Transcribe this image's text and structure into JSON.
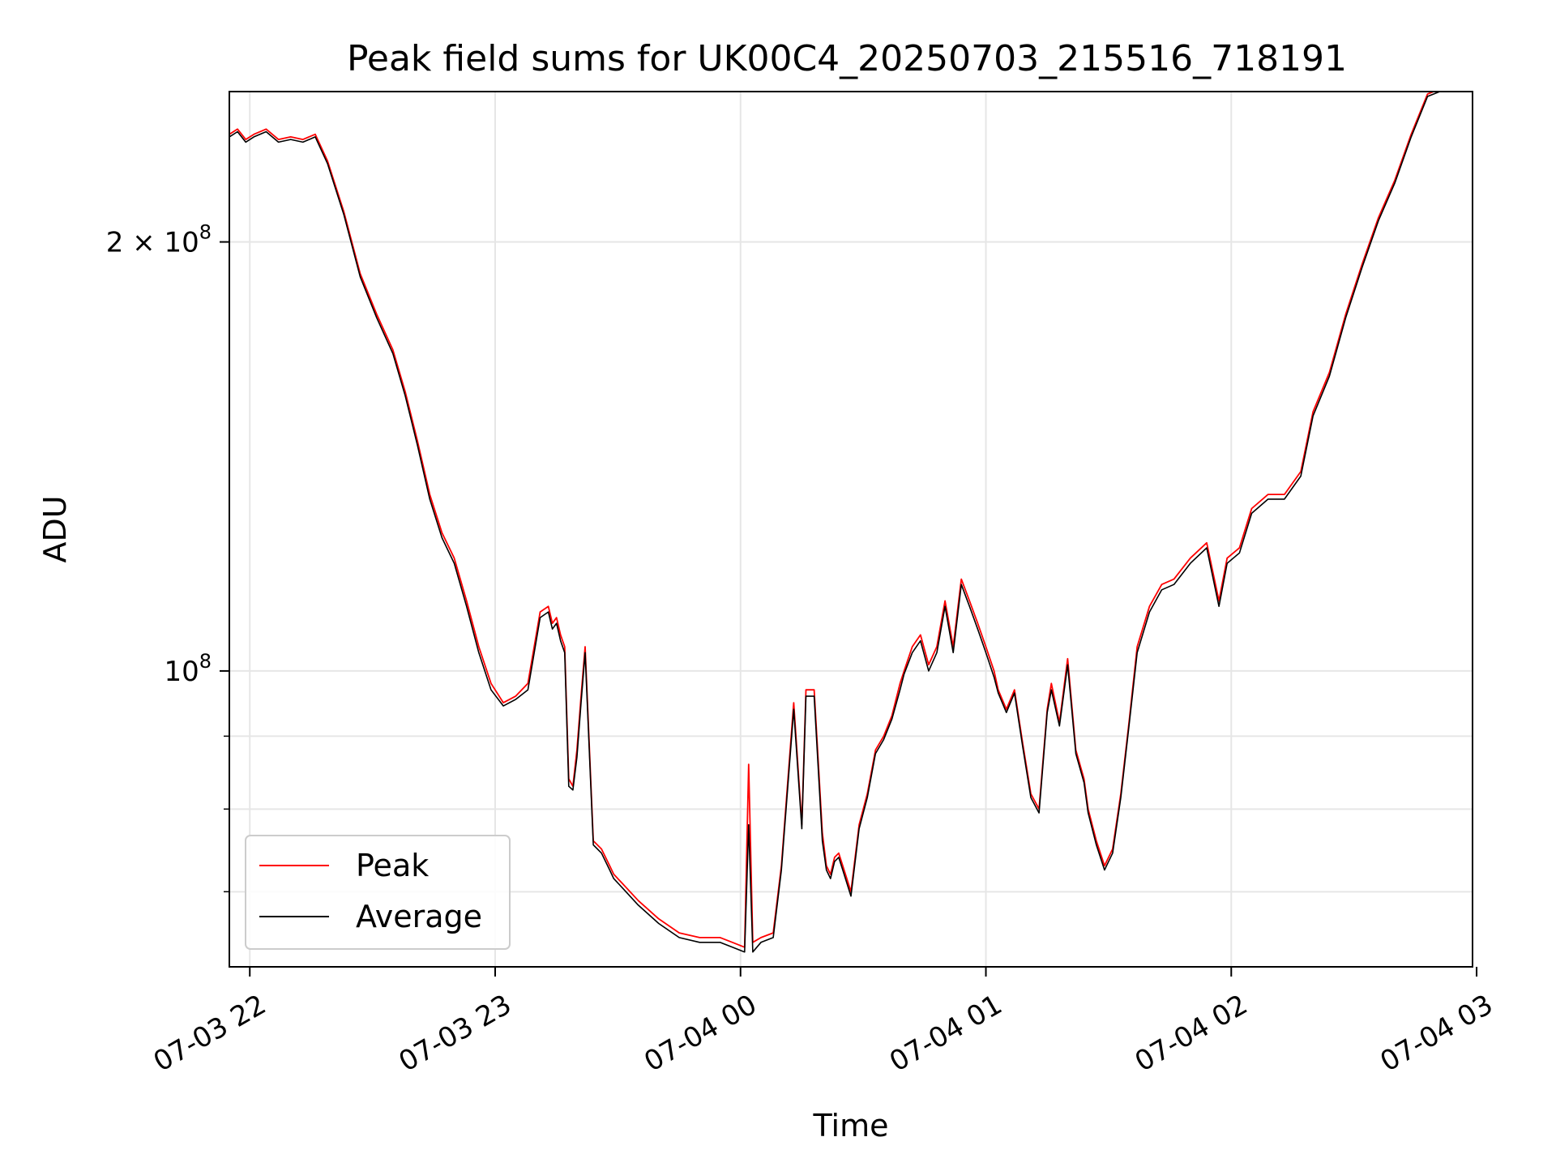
{
  "chart_data": {
    "type": "line",
    "title": "Peak field sums for UK00C4_20250703_215516_718191",
    "xlabel": "Time",
    "ylabel": "ADU",
    "yscale": "log",
    "grid": true,
    "legend_position": "lower-left",
    "xlim": [
      "2025-07-03 21:55",
      "2025-07-04 02:59"
    ],
    "ylim": [
      62000000,
      255000000
    ],
    "x_ticks": [
      {
        "value": "2025-07-03 22:00",
        "label": "07-03 22"
      },
      {
        "value": "2025-07-03 23:00",
        "label": "07-03 23"
      },
      {
        "value": "2025-07-04 00:00",
        "label": "07-04 00"
      },
      {
        "value": "2025-07-04 01:00",
        "label": "07-04 01"
      },
      {
        "value": "2025-07-04 02:00",
        "label": "07-04 02"
      },
      {
        "value": "2025-07-04 03:00",
        "label": "07-04 03"
      }
    ],
    "y_ticks_major": [
      {
        "value": 100000000,
        "label_base": "10",
        "label_exp": "8",
        "label_coef": ""
      },
      {
        "value": 200000000,
        "label_base": "10",
        "label_exp": "8",
        "label_coef": "2 × "
      }
    ],
    "y_ticks_minor": [
      70000000,
      80000000,
      90000000,
      300000000
    ],
    "series": [
      {
        "name": "Peak",
        "color": "#ff0000",
        "x": [
          "2025-07-03 21:55",
          "2025-07-03 21:57",
          "2025-07-03 21:59",
          "2025-07-03 22:01",
          "2025-07-03 22:04",
          "2025-07-03 22:07",
          "2025-07-03 22:10",
          "2025-07-03 22:13",
          "2025-07-03 22:16",
          "2025-07-03 22:19",
          "2025-07-03 22:23",
          "2025-07-03 22:27",
          "2025-07-03 22:31",
          "2025-07-03 22:35",
          "2025-07-03 22:38",
          "2025-07-03 22:41",
          "2025-07-03 22:44",
          "2025-07-03 22:47",
          "2025-07-03 22:50",
          "2025-07-03 22:53",
          "2025-07-03 22:56",
          "2025-07-03 22:59",
          "2025-07-03 23:02",
          "2025-07-03 23:05",
          "2025-07-03 23:08",
          "2025-07-03 23:11",
          "2025-07-03 23:13",
          "2025-07-03 23:14",
          "2025-07-03 23:15",
          "2025-07-03 23:16",
          "2025-07-03 23:17",
          "2025-07-03 23:18",
          "2025-07-03 23:19",
          "2025-07-03 23:20",
          "2025-07-03 23:21",
          "2025-07-03 23:22",
          "2025-07-03 23:24",
          "2025-07-03 23:26",
          "2025-07-03 23:28",
          "2025-07-03 23:29",
          "2025-07-03 23:31",
          "2025-07-03 23:35",
          "2025-07-03 23:40",
          "2025-07-03 23:45",
          "2025-07-03 23:50",
          "2025-07-03 23:55",
          "2025-07-03 23:58",
          "2025-07-04 00:01",
          "2025-07-04 00:02",
          "2025-07-04 00:03",
          "2025-07-04 00:05",
          "2025-07-04 00:08",
          "2025-07-04 00:10",
          "2025-07-04 00:13",
          "2025-07-04 00:15",
          "2025-07-04 00:16",
          "2025-07-04 00:18",
          "2025-07-04 00:20",
          "2025-07-04 00:21",
          "2025-07-04 00:22",
          "2025-07-04 00:23",
          "2025-07-04 00:24",
          "2025-07-04 00:25",
          "2025-07-04 00:27",
          "2025-07-04 00:29",
          "2025-07-04 00:31",
          "2025-07-04 00:33",
          "2025-07-04 00:35",
          "2025-07-04 00:37",
          "2025-07-04 00:39",
          "2025-07-04 00:40",
          "2025-07-04 00:42",
          "2025-07-04 00:44",
          "2025-07-04 00:46",
          "2025-07-04 00:48",
          "2025-07-04 00:50",
          "2025-07-04 00:52",
          "2025-07-04 00:54",
          "2025-07-04 00:56",
          "2025-07-04 00:58",
          "2025-07-04 01:00",
          "2025-07-04 01:02",
          "2025-07-04 01:03",
          "2025-07-04 01:05",
          "2025-07-04 01:07",
          "2025-07-04 01:09",
          "2025-07-04 01:11",
          "2025-07-04 01:13",
          "2025-07-04 01:15",
          "2025-07-04 01:16",
          "2025-07-04 01:18",
          "2025-07-04 01:20",
          "2025-07-04 01:22",
          "2025-07-04 01:24",
          "2025-07-04 01:25",
          "2025-07-04 01:27",
          "2025-07-04 01:29",
          "2025-07-04 01:31",
          "2025-07-04 01:33",
          "2025-07-04 01:35",
          "2025-07-04 01:37",
          "2025-07-04 01:40",
          "2025-07-04 01:43",
          "2025-07-04 01:46",
          "2025-07-04 01:50",
          "2025-07-04 01:54",
          "2025-07-04 01:57",
          "2025-07-04 01:59",
          "2025-07-04 02:02",
          "2025-07-04 02:05",
          "2025-07-04 02:09",
          "2025-07-04 02:13",
          "2025-07-04 02:17",
          "2025-07-04 02:20",
          "2025-07-04 02:24",
          "2025-07-04 02:28",
          "2025-07-04 02:32",
          "2025-07-04 02:36",
          "2025-07-04 02:40",
          "2025-07-04 02:44",
          "2025-07-04 02:48",
          "2025-07-04 02:51"
        ],
        "values": [
          238000000,
          240000000,
          236000000,
          238000000,
          240000000,
          236000000,
          237000000,
          236000000,
          238000000,
          228000000,
          210000000,
          190000000,
          178000000,
          168000000,
          157000000,
          145000000,
          133000000,
          125000000,
          120000000,
          112000000,
          104000000,
          98000000,
          95000000,
          96000000,
          98000000,
          110000000,
          111000000,
          108000000,
          109000000,
          106000000,
          104000000,
          84000000,
          83000000,
          88000000,
          96000000,
          104000000,
          76000000,
          75000000,
          73000000,
          72000000,
          71000000,
          69000000,
          67000000,
          65500000,
          65000000,
          65000000,
          64500000,
          64000000,
          86000000,
          64500000,
          65000000,
          65500000,
          73000000,
          95000000,
          78000000,
          97000000,
          97000000,
          77000000,
          73000000,
          72000000,
          74000000,
          74500000,
          73000000,
          70000000,
          78000000,
          82000000,
          88000000,
          90000000,
          93000000,
          98000000,
          100000000,
          104000000,
          106000000,
          101000000,
          104000000,
          112000000,
          104000000,
          116000000,
          112000000,
          108000000,
          104000000,
          100000000,
          97000000,
          94000000,
          97000000,
          89000000,
          82000000,
          80000000,
          94000000,
          98000000,
          92000000,
          102000000,
          88000000,
          84000000,
          80000000,
          76000000,
          73000000,
          75000000,
          82000000,
          92000000,
          104000000,
          111000000,
          115000000,
          116000000,
          120000000,
          123000000,
          112000000,
          120000000,
          122000000,
          130000000,
          133000000,
          133000000,
          138000000,
          152000000,
          162000000,
          178000000,
          193000000,
          208000000,
          221000000,
          238000000,
          254000000,
          256000000
        ]
      },
      {
        "name": "Average",
        "color": "#000000",
        "x": [
          "2025-07-03 21:55",
          "2025-07-03 21:57",
          "2025-07-03 21:59",
          "2025-07-03 22:01",
          "2025-07-03 22:04",
          "2025-07-03 22:07",
          "2025-07-03 22:10",
          "2025-07-03 22:13",
          "2025-07-03 22:16",
          "2025-07-03 22:19",
          "2025-07-03 22:23",
          "2025-07-03 22:27",
          "2025-07-03 22:31",
          "2025-07-03 22:35",
          "2025-07-03 22:38",
          "2025-07-03 22:41",
          "2025-07-03 22:44",
          "2025-07-03 22:47",
          "2025-07-03 22:50",
          "2025-07-03 22:53",
          "2025-07-03 22:56",
          "2025-07-03 22:59",
          "2025-07-03 23:02",
          "2025-07-03 23:05",
          "2025-07-03 23:08",
          "2025-07-03 23:11",
          "2025-07-03 23:13",
          "2025-07-03 23:14",
          "2025-07-03 23:15",
          "2025-07-03 23:16",
          "2025-07-03 23:17",
          "2025-07-03 23:18",
          "2025-07-03 23:19",
          "2025-07-03 23:20",
          "2025-07-03 23:21",
          "2025-07-03 23:22",
          "2025-07-03 23:24",
          "2025-07-03 23:26",
          "2025-07-03 23:28",
          "2025-07-03 23:29",
          "2025-07-03 23:31",
          "2025-07-03 23:35",
          "2025-07-03 23:40",
          "2025-07-03 23:45",
          "2025-07-03 23:50",
          "2025-07-03 23:55",
          "2025-07-03 23:58",
          "2025-07-04 00:01",
          "2025-07-04 00:02",
          "2025-07-04 00:03",
          "2025-07-04 00:05",
          "2025-07-04 00:08",
          "2025-07-04 00:10",
          "2025-07-04 00:13",
          "2025-07-04 00:15",
          "2025-07-04 00:16",
          "2025-07-04 00:18",
          "2025-07-04 00:20",
          "2025-07-04 00:21",
          "2025-07-04 00:22",
          "2025-07-04 00:23",
          "2025-07-04 00:24",
          "2025-07-04 00:25",
          "2025-07-04 00:27",
          "2025-07-04 00:29",
          "2025-07-04 00:31",
          "2025-07-04 00:33",
          "2025-07-04 00:35",
          "2025-07-04 00:37",
          "2025-07-04 00:39",
          "2025-07-04 00:40",
          "2025-07-04 00:42",
          "2025-07-04 00:44",
          "2025-07-04 00:46",
          "2025-07-04 00:48",
          "2025-07-04 00:50",
          "2025-07-04 00:52",
          "2025-07-04 00:54",
          "2025-07-04 00:56",
          "2025-07-04 00:58",
          "2025-07-04 01:00",
          "2025-07-04 01:02",
          "2025-07-04 01:03",
          "2025-07-04 01:05",
          "2025-07-04 01:07",
          "2025-07-04 01:09",
          "2025-07-04 01:11",
          "2025-07-04 01:13",
          "2025-07-04 01:15",
          "2025-07-04 01:16",
          "2025-07-04 01:18",
          "2025-07-04 01:20",
          "2025-07-04 01:22",
          "2025-07-04 01:24",
          "2025-07-04 01:25",
          "2025-07-04 01:27",
          "2025-07-04 01:29",
          "2025-07-04 01:31",
          "2025-07-04 01:33",
          "2025-07-04 01:35",
          "2025-07-04 01:37",
          "2025-07-04 01:40",
          "2025-07-04 01:43",
          "2025-07-04 01:46",
          "2025-07-04 01:50",
          "2025-07-04 01:54",
          "2025-07-04 01:57",
          "2025-07-04 01:59",
          "2025-07-04 02:02",
          "2025-07-04 02:05",
          "2025-07-04 02:09",
          "2025-07-04 02:13",
          "2025-07-04 02:17",
          "2025-07-04 02:20",
          "2025-07-04 02:24",
          "2025-07-04 02:28",
          "2025-07-04 02:32",
          "2025-07-04 02:36",
          "2025-07-04 02:40",
          "2025-07-04 02:44",
          "2025-07-04 02:48",
          "2025-07-04 02:51"
        ],
        "values": [
          237000000,
          239000000,
          235000000,
          237000000,
          239000000,
          235000000,
          236000000,
          235000000,
          237000000,
          227000000,
          209000000,
          189000000,
          177000000,
          167000000,
          156000000,
          144000000,
          132000000,
          124000000,
          119000000,
          111000000,
          103000000,
          97000000,
          94500000,
          95500000,
          97000000,
          109000000,
          110000000,
          107000000,
          108000000,
          105000000,
          103000000,
          83000000,
          82500000,
          87000000,
          95000000,
          103000000,
          75500000,
          74500000,
          72500000,
          71500000,
          70500000,
          68500000,
          66500000,
          65000000,
          64500000,
          64500000,
          64000000,
          63500000,
          78000000,
          63500000,
          64500000,
          65000000,
          72500000,
          94000000,
          77500000,
          96000000,
          96000000,
          76000000,
          72500000,
          71500000,
          73500000,
          74000000,
          72500000,
          69500000,
          77500000,
          81500000,
          87500000,
          89500000,
          92500000,
          97000000,
          99500000,
          103000000,
          105000000,
          100000000,
          103000000,
          111000000,
          103000000,
          115000000,
          111000000,
          107000000,
          103000000,
          99000000,
          96500000,
          93500000,
          96500000,
          88500000,
          81500000,
          79500000,
          93500000,
          97000000,
          91500000,
          101000000,
          87500000,
          83500000,
          79500000,
          75500000,
          72500000,
          74500000,
          81500000,
          91500000,
          103000000,
          110000000,
          114000000,
          115000000,
          119000000,
          122000000,
          111000000,
          119000000,
          121000000,
          129000000,
          132000000,
          132000000,
          137000000,
          151000000,
          161000000,
          177000000,
          192000000,
          207000000,
          220000000,
          237000000,
          253000000,
          255000000
        ]
      }
    ]
  }
}
